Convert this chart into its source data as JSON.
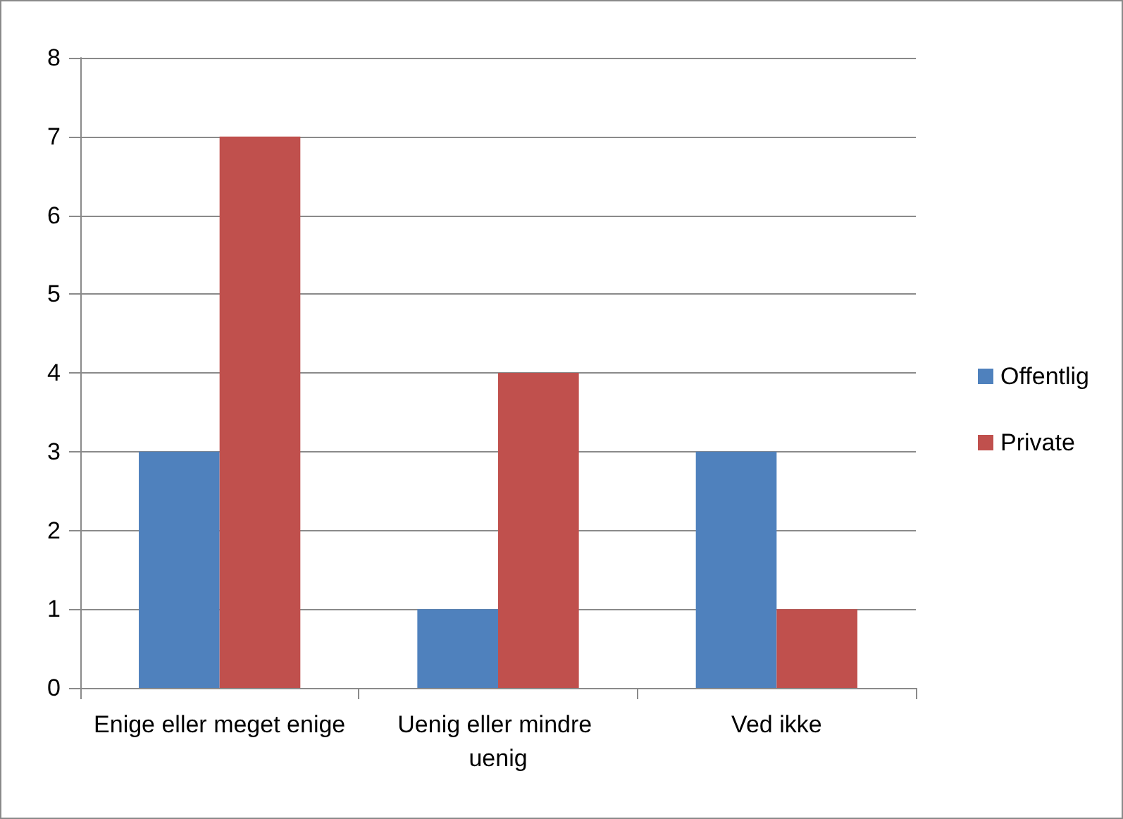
{
  "chart_data": {
    "type": "bar",
    "categories": [
      "Enige eller meget enige",
      "Uenig eller mindre uenig",
      "Ved ikke"
    ],
    "series": [
      {
        "name": "Offentlig",
        "color": "#4f81bd",
        "values": [
          3,
          1,
          3
        ]
      },
      {
        "name": "Private",
        "color": "#c0504d",
        "values": [
          7,
          4,
          1
        ]
      }
    ],
    "ylim": [
      0,
      8
    ],
    "yticks": [
      0,
      1,
      2,
      3,
      4,
      5,
      6,
      7,
      8
    ],
    "grid": "y",
    "legend": "right"
  }
}
